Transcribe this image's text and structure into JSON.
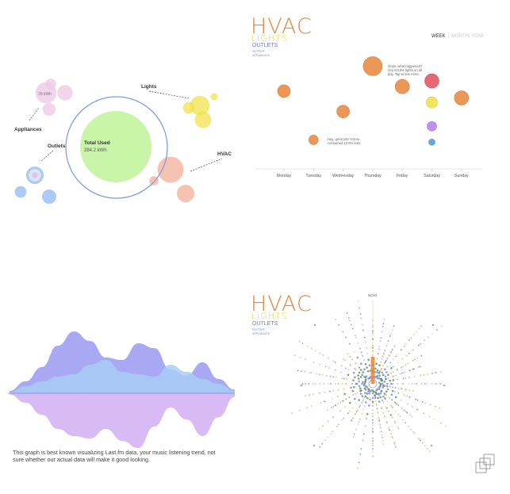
{
  "colors": {
    "hvac": "#e8863a",
    "lights": "#e8d43a",
    "outlets": "#6d7bd3",
    "water": "#7fa8e8",
    "appliances": "#c9a0c9",
    "total": "#c8f5a8",
    "ring": "#7e9ee0"
  },
  "panel1": {
    "labels": {
      "appliances": "Appliances",
      "lights": "Lights",
      "outlets": "Outlets",
      "hvac": "HVAC"
    },
    "total_label": "Total Used",
    "total_value": "284.2 kWh",
    "bubble_value": "26 kWh"
  },
  "panel2": {
    "legend": {
      "hvac": "HVAC",
      "lights": "LIGHTS",
      "outlets": "OUTLETS",
      "water": "WATER",
      "appliances": "APPLIANCES"
    },
    "range_tabs": [
      "WEEK",
      "MONTH",
      "YEAR"
    ],
    "range_separator": "|",
    "active_tab": "WEEK",
    "note_top": [
      "Oops, what happened?",
      "You left the lights on all",
      "day. Tap to see more."
    ],
    "note_bottom": [
      "Hey, great job! You've",
      "consumed 12.5% less."
    ]
  },
  "panel3": {
    "caption": "This graph is best known visualizing Last.fm data, your music listening trend, not sure whether our actual data will make it good looking."
  },
  "panel4": {
    "legend": {
      "hvac": "HVAC",
      "lights": "LIGHTS",
      "outlets": "OUTLETS",
      "water": "WATER",
      "appliances": "APPLIANCES"
    },
    "now_label": "NOW"
  },
  "chart_data": [
    {
      "type": "scatter",
      "subtype": "bubble-pack",
      "series": [
        {
          "name": "Total Used",
          "values": [
            284.2
          ]
        },
        {
          "name": "Appliances",
          "values": [
            26,
            14,
            10,
            7
          ]
        },
        {
          "name": "Lights",
          "values": [
            22,
            16,
            8,
            3
          ]
        },
        {
          "name": "Outlets",
          "values": [
            18,
            12,
            8,
            4
          ]
        },
        {
          "name": "HVAC",
          "values": [
            40,
            18,
            5
          ]
        }
      ]
    },
    {
      "type": "scatter",
      "categories": [
        "Monday",
        "Tuesday",
        "Wednesday",
        "Thursday",
        "Friday",
        "Saturday",
        "Sunday"
      ],
      "points": [
        {
          "day": "Monday",
          "series": "HVAC",
          "value": 63,
          "size": 8
        },
        {
          "day": "Tuesday",
          "series": "HVAC",
          "value": 20,
          "size": 6
        },
        {
          "day": "Wednesday",
          "series": "HVAC",
          "value": 45,
          "size": 8
        },
        {
          "day": "Thursday",
          "series": "HVAC",
          "value": 85,
          "size": 12
        },
        {
          "day": "Friday",
          "series": "HVAC",
          "value": 67,
          "size": 9
        },
        {
          "day": "Saturday",
          "series": "Appliances",
          "value": 72,
          "size": 9
        },
        {
          "day": "Saturday",
          "series": "Lights",
          "value": 53,
          "size": 7
        },
        {
          "day": "Saturday",
          "series": "Outlets",
          "value": 32,
          "size": 6
        },
        {
          "day": "Saturday",
          "series": "Water",
          "value": 18,
          "size": 4
        },
        {
          "day": "Sunday",
          "series": "HVAC",
          "value": 57,
          "size": 9
        }
      ],
      "ylim": [
        0,
        100
      ]
    },
    {
      "type": "area",
      "subtype": "streamgraph",
      "x": [
        0,
        1,
        2,
        3,
        4,
        5,
        6,
        7,
        8,
        9,
        10,
        11,
        12,
        13,
        14
      ],
      "series": [
        {
          "name": "",
          "values": [
            2,
            10,
            22,
            40,
            52,
            44,
            30,
            28,
            42,
            38,
            20,
            15,
            26,
            12,
            3
          ]
        },
        {
          "name": "",
          "values": [
            1,
            6,
            10,
            14,
            16,
            24,
            28,
            18,
            16,
            14,
            24,
            18,
            12,
            8,
            2
          ]
        },
        {
          "name": "",
          "values": [
            1,
            8,
            18,
            30,
            36,
            38,
            30,
            40,
            46,
            28,
            12,
            22,
            36,
            20,
            3
          ]
        }
      ]
    },
    {
      "type": "scatter",
      "subtype": "radial-burst",
      "spokes": 36,
      "series": [
        {
          "name": "HVAC"
        },
        {
          "name": "Lights"
        },
        {
          "name": "Outlets"
        },
        {
          "name": "Water"
        },
        {
          "name": "Appliances"
        }
      ]
    }
  ]
}
